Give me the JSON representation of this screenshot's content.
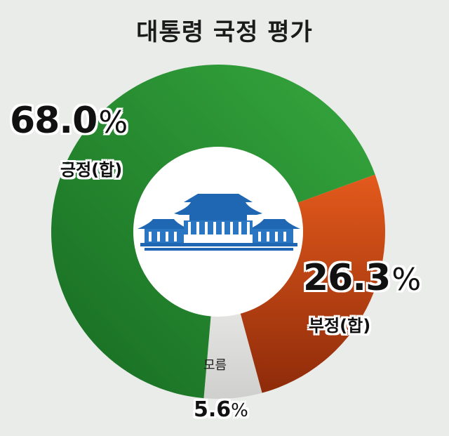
{
  "title": "대통령 국정 평가",
  "colors": {
    "positive": "#2e9a3d",
    "negative": "#d9531b",
    "unknown": "#d4d4d2",
    "emblem": "#1f66b3"
  },
  "icons": {
    "center": "blue-house-emblem-icon"
  },
  "chart_data": {
    "type": "pie",
    "donut": true,
    "title": "대통령 국정 평가",
    "slices": [
      {
        "label": "긍정(합)",
        "value": 68.0,
        "display": "68.0",
        "color": "#2e9a3d"
      },
      {
        "label": "부정(합)",
        "value": 26.3,
        "display": "26.3",
        "color": "#d9531b"
      },
      {
        "label": "모름",
        "value": 5.6,
        "display": "5.6",
        "color": "#d4d4d2"
      }
    ],
    "unit": "%"
  }
}
